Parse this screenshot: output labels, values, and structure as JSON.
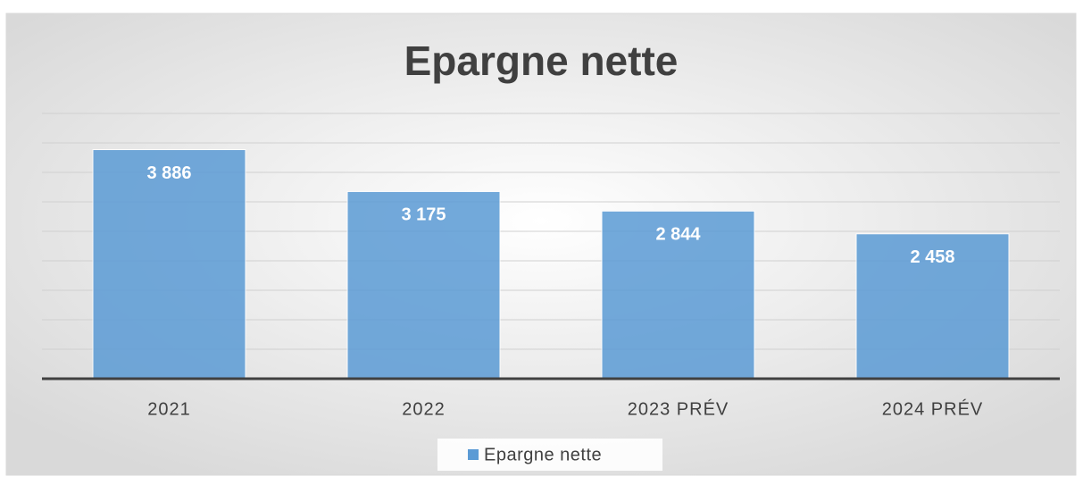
{
  "chart_data": {
    "type": "bar",
    "title": "Epargne nette",
    "categories": [
      "2021",
      "2022",
      "2023 PRÉV",
      "2024 PRÉV"
    ],
    "series": [
      {
        "name": "Epargne nette",
        "color": "#5b9bd5",
        "values": [
          3886,
          3175,
          2844,
          2458
        ],
        "value_labels": [
          "3 886",
          "3 175",
          "2 844",
          "2 458"
        ]
      }
    ],
    "ylim": [
      0,
      4500
    ],
    "yticks": [
      0,
      500,
      1000,
      1500,
      2000,
      2500,
      3000,
      3500,
      4000,
      4500
    ],
    "grid": true,
    "legend": "bottom"
  }
}
